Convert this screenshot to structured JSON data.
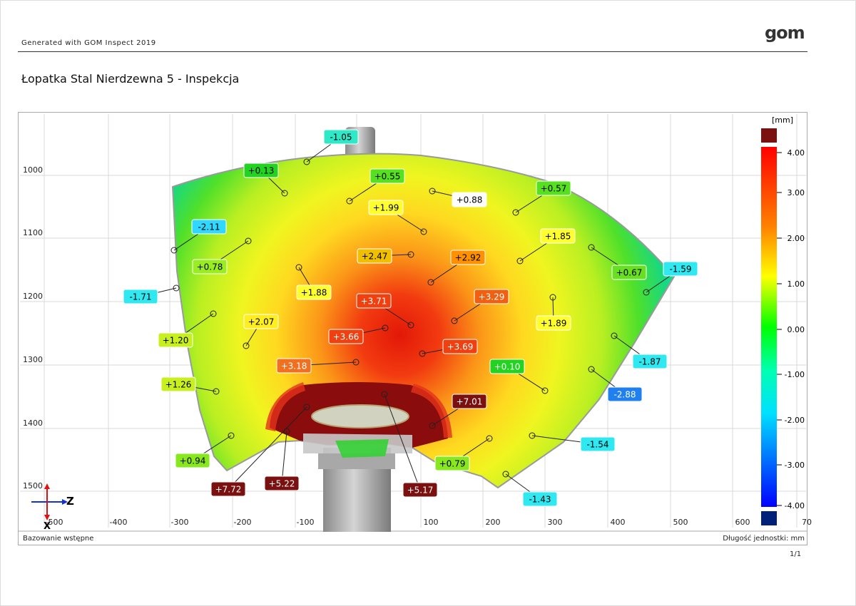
{
  "header": {
    "generator": "Generated with GOM Inspect 2019",
    "logo": "gom",
    "title": "Łopatka Stal Nierdzewna 5 - Inspekcja"
  },
  "footer": {
    "alignment": "Bazowanie wstępne",
    "unit_length": "Długość jednostki: mm",
    "page": "1/1"
  },
  "axes": {
    "x_ticks": [
      "-500",
      "-400",
      "-300",
      "-200",
      "-100",
      "0",
      "100",
      "200",
      "300",
      "400",
      "500",
      "600",
      "70"
    ],
    "y_ticks": [
      "1000",
      "1100",
      "1200",
      "1300",
      "1400",
      "1500"
    ],
    "triad_z": "Z",
    "triad_x": "X"
  },
  "colorbar": {
    "unit": "[mm]",
    "ticks": [
      "4.00",
      "3.00",
      "2.00",
      "1.00",
      "0.00",
      "-1.00",
      "-2.00",
      "-3.00",
      "-4.00"
    ],
    "over_color": "#7a1010",
    "under_color": "#00207a"
  },
  "deviation_labels": [
    {
      "text": "-1.05",
      "bg": "#2fe8c8",
      "fg": "#000"
    },
    {
      "text": "+0.13",
      "bg": "#22d322",
      "fg": "#000"
    },
    {
      "text": "+0.55",
      "bg": "#55e020",
      "fg": "#000"
    },
    {
      "text": "+0.88",
      "bg": "#ffffff",
      "fg": "#000"
    },
    {
      "text": "+0.57",
      "bg": "#55e020",
      "fg": "#000"
    },
    {
      "text": "+1.99",
      "bg": "#ffff30",
      "fg": "#000"
    },
    {
      "text": "-2.11",
      "bg": "#30d8ff",
      "fg": "#000"
    },
    {
      "text": "+1.85",
      "bg": "#ffff30",
      "fg": "#000"
    },
    {
      "text": "+0.78",
      "bg": "#99ee22",
      "fg": "#000"
    },
    {
      "text": "+2.47",
      "bg": "#f0c000",
      "fg": "#000"
    },
    {
      "text": "+2.92",
      "bg": "#ff9000",
      "fg": "#000"
    },
    {
      "text": "+0.67",
      "bg": "#66e020",
      "fg": "#000"
    },
    {
      "text": "-1.59",
      "bg": "#30e8f0",
      "fg": "#000"
    },
    {
      "text": "-1.71",
      "bg": "#30e8f0",
      "fg": "#000"
    },
    {
      "text": "+1.88",
      "bg": "#ffff30",
      "fg": "#000"
    },
    {
      "text": "+3.71",
      "bg": "#f04010",
      "fg": "#fff"
    },
    {
      "text": "+3.29",
      "bg": "#f06010",
      "fg": "#fff"
    },
    {
      "text": "+2.07",
      "bg": "#ffee20",
      "fg": "#000"
    },
    {
      "text": "+1.89",
      "bg": "#ffff30",
      "fg": "#000"
    },
    {
      "text": "+1.20",
      "bg": "#c8f020",
      "fg": "#000"
    },
    {
      "text": "+3.66",
      "bg": "#f04010",
      "fg": "#fff"
    },
    {
      "text": "+3.69",
      "bg": "#f04010",
      "fg": "#fff"
    },
    {
      "text": "-1.87",
      "bg": "#30e8f0",
      "fg": "#000"
    },
    {
      "text": "+3.18",
      "bg": "#f07020",
      "fg": "#fff"
    },
    {
      "text": "+0.10",
      "bg": "#22d322",
      "fg": "#fff"
    },
    {
      "text": "-2.88",
      "bg": "#2080f0",
      "fg": "#fff"
    },
    {
      "text": "+1.26",
      "bg": "#c8f020",
      "fg": "#000"
    },
    {
      "text": "+7.01",
      "bg": "#7a1010",
      "fg": "#fff"
    },
    {
      "text": "-1.54",
      "bg": "#30e8f0",
      "fg": "#000"
    },
    {
      "text": "+0.94",
      "bg": "#88e820",
      "fg": "#000"
    },
    {
      "text": "+0.79",
      "bg": "#88e820",
      "fg": "#000"
    },
    {
      "text": "+5.22",
      "bg": "#7a1010",
      "fg": "#fff"
    },
    {
      "text": "+7.72",
      "bg": "#7a1010",
      "fg": "#fff"
    },
    {
      "text": "+5.17",
      "bg": "#7a1010",
      "fg": "#fff"
    },
    {
      "text": "-1.43",
      "bg": "#30e8f0",
      "fg": "#000"
    }
  ]
}
